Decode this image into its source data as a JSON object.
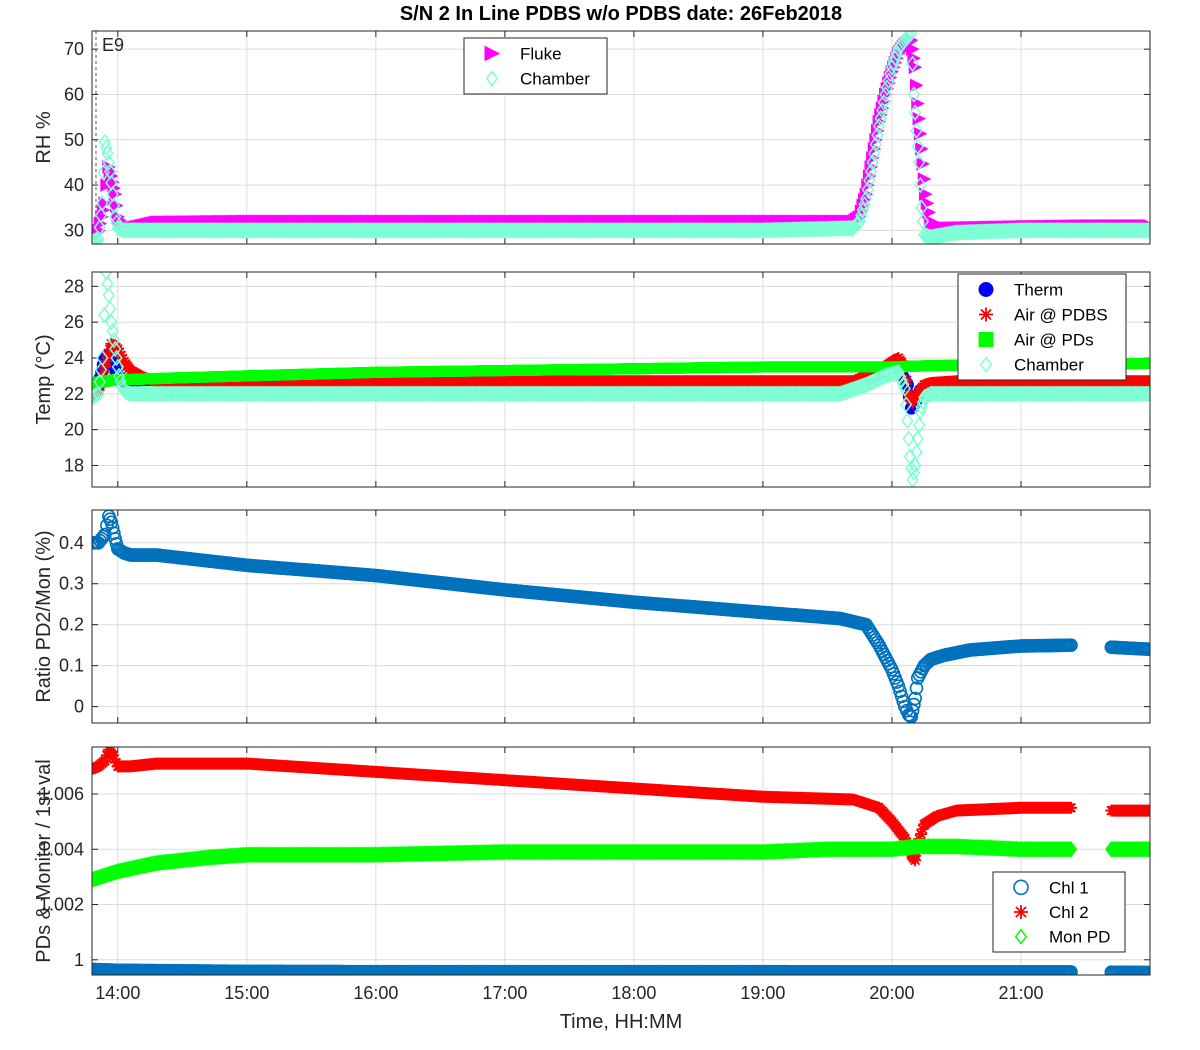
{
  "figure": {
    "title": "S/N 2 In Line PDBS w/o PDBS date: 26Feb2018",
    "xlabel": "Time, HH:MM"
  },
  "chart_data": [
    {
      "type": "scatter",
      "ylabel": "RH %",
      "annotation": "E9",
      "xlim": [
        13.8,
        22.0
      ],
      "ylim": [
        27,
        74
      ],
      "yticks": [
        30,
        40,
        50,
        60,
        70
      ],
      "xticks": [
        "14:00",
        "15:00",
        "16:00",
        "17:00",
        "18:00",
        "19:00",
        "20:00",
        "21:00"
      ],
      "grid": true,
      "legend_position": "top-center",
      "series": [
        {
          "name": "Fluke",
          "marker": "triangle-right",
          "color": "#ff00ff",
          "x": [
            13.8,
            13.85,
            13.9,
            13.93,
            13.95,
            13.98,
            14.0,
            14.03,
            14.06,
            14.1,
            14.3,
            15,
            16,
            17,
            18,
            19,
            19.7,
            19.75,
            19.8,
            19.85,
            19.9,
            19.95,
            20.0,
            20.05,
            20.1,
            20.15,
            20.18,
            20.2,
            20.23,
            20.26,
            20.3,
            20.4,
            21,
            21.5,
            22
          ],
          "y": [
            28.5,
            30,
            36,
            44,
            42,
            38,
            33,
            31.5,
            31,
            30.5,
            31.8,
            32,
            32,
            32,
            32,
            32,
            32,
            33,
            38,
            46,
            54,
            60,
            65,
            69,
            71,
            72,
            66,
            58,
            48,
            38,
            32,
            30.5,
            30.8,
            31,
            31
          ]
        },
        {
          "name": "Chamber",
          "marker": "diamond",
          "color": "#7fffd4",
          "x": [
            13.8,
            13.85,
            13.88,
            13.9,
            13.92,
            13.94,
            13.96,
            13.98,
            14.0,
            14.05,
            14.1,
            14.5,
            15,
            16,
            17,
            18,
            19,
            19.7,
            19.75,
            19.8,
            19.85,
            19.9,
            19.95,
            20.0,
            20.05,
            20.1,
            20.15,
            20.17,
            20.19,
            20.21,
            20.23,
            20.25,
            20.3,
            20.5,
            21,
            21.5,
            22
          ],
          "y": [
            27.5,
            28,
            36,
            49.5,
            47,
            43,
            38,
            33,
            30.5,
            30,
            30,
            30,
            30,
            30,
            30,
            30,
            30,
            30.5,
            32,
            37,
            45,
            53,
            60,
            66,
            70,
            72,
            73.5,
            60,
            52,
            45,
            35,
            29,
            28.5,
            29.5,
            30,
            30,
            30
          ]
        }
      ]
    },
    {
      "type": "scatter",
      "ylabel": "Temp (°C)",
      "xlim": [
        13.8,
        22.0
      ],
      "ylim": [
        16.8,
        28.8
      ],
      "yticks": [
        18,
        20,
        22,
        24,
        26,
        28
      ],
      "grid": true,
      "legend_position": "top-right",
      "series": [
        {
          "name": "Therm",
          "marker": "filled-circle",
          "color": "#0000ff",
          "x": [
            13.8,
            13.85,
            13.9,
            13.93,
            13.96,
            14.0,
            14.05,
            14.1,
            14.2,
            15,
            16,
            17,
            18,
            19,
            19.7,
            19.9,
            20.05,
            20.12,
            20.15,
            20.18,
            20.22,
            20.3,
            20.5,
            21,
            22
          ],
          "y": [
            21.8,
            22.5,
            24,
            24.2,
            23.8,
            23,
            22.7,
            22.7,
            22.8,
            22.7,
            22.6,
            22.6,
            22.6,
            22.6,
            22.6,
            23,
            23.4,
            22.5,
            21.2,
            21.5,
            22.2,
            22.5,
            22.5,
            22.5,
            22.4
          ]
        },
        {
          "name": "Air @ PDBS",
          "marker": "asterisk",
          "color": "#ff0000",
          "x": [
            13.8,
            13.85,
            13.9,
            13.95,
            14.0,
            14.05,
            14.1,
            14.2,
            14.3,
            15,
            16,
            17,
            18,
            19,
            19.7,
            19.9,
            20.05,
            20.1,
            20.13,
            20.16,
            20.2,
            20.25,
            20.3,
            20.5,
            21,
            22
          ],
          "y": [
            22,
            22.2,
            23.5,
            24.8,
            24.5,
            23.8,
            23.3,
            22.9,
            22.7,
            22.7,
            22.7,
            22.7,
            22.7,
            22.7,
            22.7,
            23.3,
            24,
            23.5,
            22,
            21.5,
            22,
            22.5,
            22.6,
            22.7,
            22.7,
            22.7
          ]
        },
        {
          "name": "Air @ PDs",
          "marker": "filled-square",
          "color": "#00ff00",
          "x": [
            13.8,
            13.9,
            14.0,
            14.1,
            14.5,
            15,
            16,
            17,
            18,
            19,
            19.7,
            20.0,
            20.2,
            20.5,
            21,
            21.5,
            22
          ],
          "y": [
            22.6,
            22.7,
            22.8,
            22.8,
            22.9,
            23.0,
            23.2,
            23.3,
            23.4,
            23.5,
            23.5,
            23.5,
            23.55,
            23.6,
            23.6,
            23.65,
            23.7
          ]
        },
        {
          "name": "Chamber",
          "marker": "diamond",
          "color": "#7fffd4",
          "x": [
            13.8,
            13.85,
            13.88,
            13.91,
            13.93,
            13.95,
            13.97,
            13.99,
            14.01,
            14.03,
            14.06,
            14.1,
            14.2,
            15,
            16,
            17,
            18,
            19,
            19.6,
            19.8,
            19.95,
            20.05,
            20.1,
            20.12,
            20.14,
            20.16,
            20.18,
            20.2,
            20.22,
            20.25,
            20.3,
            20.5,
            21,
            22
          ],
          "y": [
            21.8,
            22,
            24,
            28.8,
            27.5,
            26,
            25,
            24,
            23,
            22.4,
            22.1,
            22,
            22,
            22,
            22,
            22,
            22,
            22,
            22,
            22.5,
            23,
            23.2,
            22.3,
            20.5,
            18.5,
            17.2,
            18,
            19.5,
            21,
            21.8,
            22,
            22,
            22,
            22
          ]
        }
      ]
    },
    {
      "type": "scatter",
      "ylabel": "Ratio PD2/Mon (%)",
      "xlim": [
        13.8,
        22.0
      ],
      "ylim": [
        -0.04,
        0.48
      ],
      "yticks": [
        0,
        0.1,
        0.2,
        0.3,
        0.4
      ],
      "grid": true,
      "series": [
        {
          "name": "",
          "marker": "open-circle",
          "color": "#0072bd",
          "x": [
            13.8,
            13.85,
            13.9,
            13.93,
            13.95,
            13.98,
            14.0,
            14.05,
            14.1,
            14.3,
            15,
            16,
            17,
            18,
            19,
            19.6,
            19.8,
            19.9,
            20.0,
            20.05,
            20.1,
            20.13,
            20.15,
            20.18,
            20.2,
            20.25,
            20.3,
            20.4,
            20.6,
            21,
            21.4,
            21.7,
            22.0
          ],
          "y": [
            0.4,
            0.4,
            0.42,
            0.465,
            0.45,
            0.41,
            0.385,
            0.375,
            0.37,
            0.37,
            0.345,
            0.32,
            0.285,
            0.255,
            0.23,
            0.215,
            0.2,
            0.15,
            0.09,
            0.05,
            0.0,
            -0.02,
            -0.025,
            0.02,
            0.07,
            0.1,
            0.115,
            0.125,
            0.138,
            0.148,
            0.15,
            0.145,
            0.14
          ]
        }
      ]
    },
    {
      "type": "scatter",
      "ylabel": "PDs & Monitor / 1st val",
      "xlim": [
        13.8,
        22.0
      ],
      "ylim": [
        0.99945,
        1.0077
      ],
      "yticks": [
        "1",
        "1.002",
        "1.004",
        "1.006"
      ],
      "grid": true,
      "legend_position": "bottom-right",
      "series": [
        {
          "name": "Chl 1",
          "marker": "open-circle",
          "color": "#0072bd",
          "x": [
            13.8,
            14.0,
            15,
            16,
            17,
            18,
            19,
            20,
            21,
            21.4,
            21.7,
            22.0
          ],
          "y": [
            0.99965,
            0.99962,
            0.99958,
            0.99957,
            0.99957,
            0.99957,
            0.99957,
            0.99956,
            0.99956,
            0.99956,
            0.99955,
            0.99954
          ]
        },
        {
          "name": "Chl 2",
          "marker": "asterisk",
          "color": "#ff0000",
          "x": [
            13.8,
            13.85,
            13.9,
            13.93,
            13.96,
            14.0,
            14.1,
            14.3,
            15,
            16,
            17,
            18,
            19,
            19.7,
            19.9,
            20.0,
            20.1,
            20.15,
            20.18,
            20.2,
            20.25,
            20.35,
            20.5,
            21,
            21.4,
            21.7,
            22.0
          ],
          "y": [
            1.0069,
            1.007,
            1.0072,
            1.0076,
            1.0074,
            1.007,
            1.007,
            1.0071,
            1.0071,
            1.0068,
            1.0065,
            1.0062,
            1.0059,
            1.0058,
            1.0055,
            1.005,
            1.0044,
            1.0038,
            1.0036,
            1.0042,
            1.0049,
            1.0052,
            1.0054,
            1.0055,
            1.0055,
            1.0054,
            1.0054
          ]
        },
        {
          "name": "Mon PD",
          "marker": "diamond",
          "color": "#00ff00",
          "x": [
            13.8,
            14.0,
            14.3,
            14.7,
            15,
            16,
            17,
            18,
            19,
            19.5,
            20,
            20.2,
            20.5,
            21,
            21.4,
            21.7,
            22.0
          ],
          "y": [
            1.0029,
            1.0032,
            1.0035,
            1.0037,
            1.0038,
            1.0038,
            1.0039,
            1.0039,
            1.0039,
            1.004,
            1.004,
            1.0041,
            1.0041,
            1.004,
            1.004,
            1.004,
            1.004
          ]
        }
      ]
    }
  ]
}
